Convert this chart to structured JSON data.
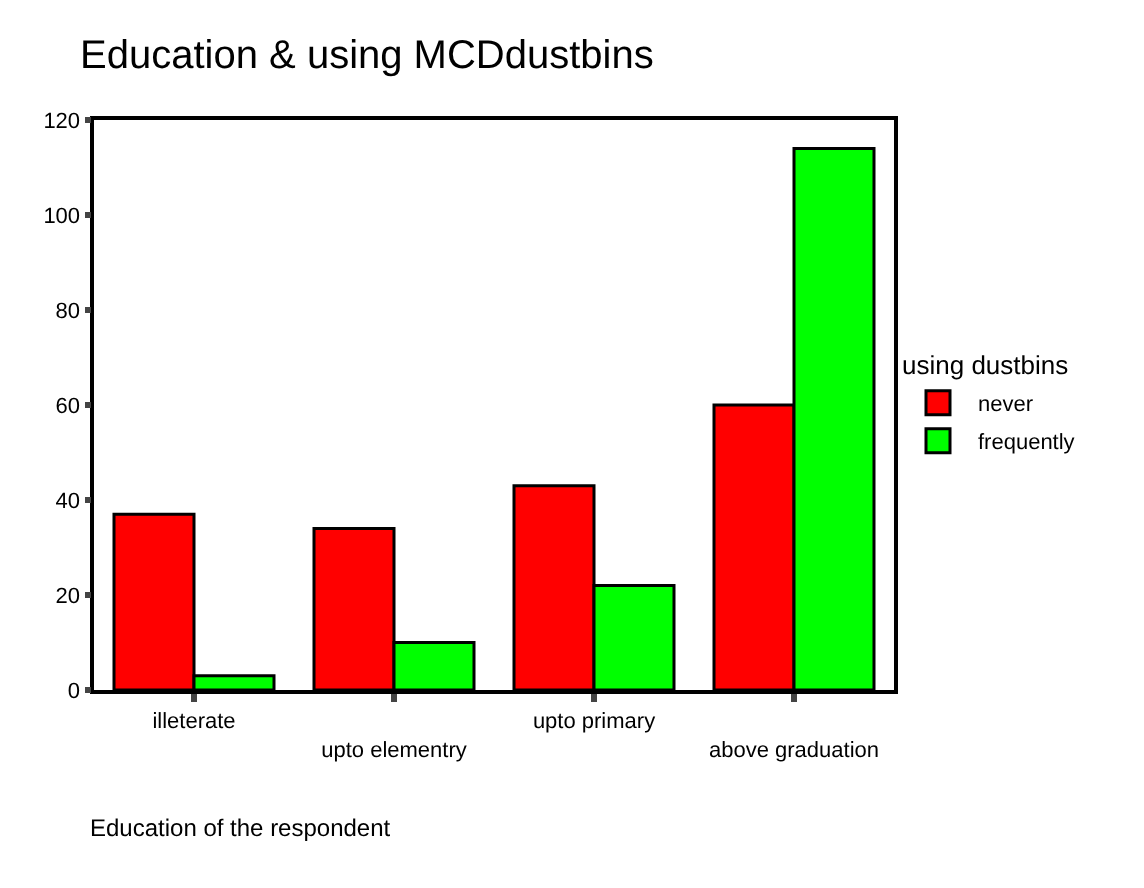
{
  "chart_data": {
    "type": "bar",
    "title": "Education & using MCDdustbins",
    "xlabel": "Education of the respondent",
    "legend_title": "using dustbins",
    "categories": [
      "illeterate",
      "upto elementry",
      "upto primary",
      "above graduation"
    ],
    "series": [
      {
        "name": "never",
        "color": "#ff0000",
        "values": [
          37,
          34,
          43,
          60
        ]
      },
      {
        "name": "frequently",
        "color": "#00ff00",
        "values": [
          3,
          10,
          22,
          114
        ]
      }
    ],
    "ylim": [
      0,
      120
    ],
    "yticks": [
      0,
      20,
      40,
      60,
      80,
      100,
      120
    ],
    "legend": "right"
  }
}
